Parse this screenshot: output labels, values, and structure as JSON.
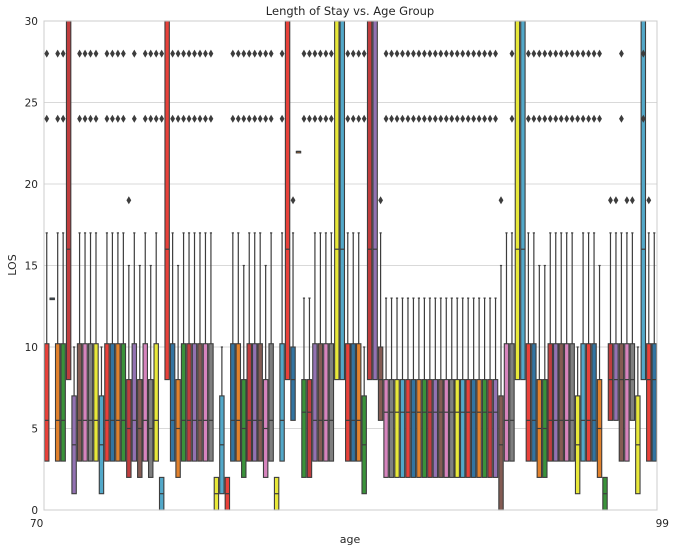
{
  "chart_data": {
    "type": "box",
    "title": "Length of Stay vs. Age Group",
    "xlabel": "age",
    "ylabel": "LOS",
    "ylim": [
      0,
      30
    ],
    "yticks": [
      0,
      5,
      10,
      15,
      20,
      25,
      30
    ],
    "grid": "y",
    "legend": "none",
    "first_x_tick_label": "70",
    "last_x_tick_label": "99",
    "palette": [
      "#e8413a",
      "#3274a1",
      "#e1812c",
      "#3a923a",
      "#c03d3e",
      "#9372b2",
      "#845b53",
      "#d684bd",
      "#7f7f7f",
      "#e8e83a",
      "#52a8c9"
    ],
    "boxes": [
      {
        "q1": 3,
        "median": 5.5,
        "q3": 10.2,
        "whisker_high": 17,
        "fliers": [
          24,
          28
        ]
      },
      {
        "q1": 13,
        "median": 13,
        "q3": 13,
        "whisker_high": 13,
        "fliers": []
      },
      {
        "q1": 3,
        "median": 5.5,
        "q3": 10.2,
        "whisker_high": 17,
        "fliers": [
          24,
          28
        ]
      },
      {
        "q1": 3,
        "median": 5.5,
        "q3": 10.2,
        "whisker_high": 17,
        "fliers": [
          24,
          28
        ]
      },
      {
        "q1": 8,
        "median": 16,
        "q3": 30,
        "whisker_high": 30,
        "fliers": []
      },
      {
        "q1": 1,
        "median": 4,
        "q3": 7,
        "whisker_high": 10,
        "fliers": []
      },
      {
        "q1": 3,
        "median": 5.5,
        "q3": 10.2,
        "whisker_high": 17,
        "fliers": [
          24,
          28
        ]
      },
      {
        "q1": 3,
        "median": 5.5,
        "q3": 10.2,
        "whisker_high": 17,
        "fliers": [
          24,
          28
        ]
      },
      {
        "q1": 3,
        "median": 5.5,
        "q3": 10.2,
        "whisker_high": 17,
        "fliers": [
          24,
          28
        ]
      },
      {
        "q1": 3,
        "median": 5.5,
        "q3": 10.2,
        "whisker_high": 17,
        "fliers": [
          24,
          28
        ]
      },
      {
        "q1": 1,
        "median": 4,
        "q3": 7,
        "whisker_high": 10,
        "fliers": []
      },
      {
        "q1": 3,
        "median": 5.5,
        "q3": 10.2,
        "whisker_high": 17,
        "fliers": [
          24,
          28
        ]
      },
      {
        "q1": 3,
        "median": 5.5,
        "q3": 10.2,
        "whisker_high": 17,
        "fliers": [
          24,
          28
        ]
      },
      {
        "q1": 3,
        "median": 5.5,
        "q3": 10.2,
        "whisker_high": 17,
        "fliers": [
          24,
          28
        ]
      },
      {
        "q1": 3,
        "median": 5.5,
        "q3": 10.2,
        "whisker_high": 17,
        "fliers": [
          24,
          28
        ]
      },
      {
        "q1": 2,
        "median": 5,
        "q3": 8,
        "whisker_high": 15,
        "fliers": [
          19
        ]
      },
      {
        "q1": 3,
        "median": 5.5,
        "q3": 10.2,
        "whisker_high": 17,
        "fliers": [
          24,
          28
        ]
      },
      {
        "q1": 2,
        "median": 5,
        "q3": 8,
        "whisker_high": 15,
        "fliers": []
      },
      {
        "q1": 3,
        "median": 5.5,
        "q3": 10.2,
        "whisker_high": 17,
        "fliers": [
          24,
          28
        ]
      },
      {
        "q1": 2,
        "median": 5,
        "q3": 8,
        "whisker_high": 15,
        "fliers": [
          24,
          28
        ]
      },
      {
        "q1": 3,
        "median": 5.5,
        "q3": 10.2,
        "whisker_high": 17,
        "fliers": [
          24,
          28
        ]
      },
      {
        "q1": 0,
        "median": 1,
        "q3": 2,
        "whisker_high": 2,
        "fliers": [
          24,
          28
        ]
      },
      {
        "q1": 8,
        "median": 16,
        "q3": 30,
        "whisker_high": 30,
        "fliers": []
      },
      {
        "q1": 3,
        "median": 5.5,
        "q3": 10.2,
        "whisker_high": 17,
        "fliers": [
          24,
          28
        ]
      },
      {
        "q1": 2,
        "median": 5,
        "q3": 8,
        "whisker_high": 15,
        "fliers": [
          24,
          28
        ]
      },
      {
        "q1": 3,
        "median": 5.5,
        "q3": 10.2,
        "whisker_high": 17,
        "fliers": [
          24,
          28
        ]
      },
      {
        "q1": 3,
        "median": 5.5,
        "q3": 10.2,
        "whisker_high": 17,
        "fliers": [
          24,
          28
        ]
      },
      {
        "q1": 3,
        "median": 5.5,
        "q3": 10.2,
        "whisker_high": 17,
        "fliers": [
          24,
          28
        ]
      },
      {
        "q1": 3,
        "median": 5.5,
        "q3": 10.2,
        "whisker_high": 17,
        "fliers": [
          24,
          28
        ]
      },
      {
        "q1": 3,
        "median": 5.5,
        "q3": 10.2,
        "whisker_high": 17,
        "fliers": [
          24,
          28
        ]
      },
      {
        "q1": 3,
        "median": 5.5,
        "q3": 10.2,
        "whisker_high": 17,
        "fliers": [
          24,
          28
        ]
      },
      {
        "q1": 0,
        "median": 1,
        "q3": 2,
        "whisker_high": 2,
        "fliers": []
      },
      {
        "q1": 1,
        "median": 4,
        "q3": 7,
        "whisker_high": 10,
        "fliers": []
      },
      {
        "q1": 0,
        "median": 1,
        "q3": 2,
        "whisker_high": 2,
        "fliers": []
      },
      {
        "q1": 3,
        "median": 5.5,
        "q3": 10.2,
        "whisker_high": 17,
        "fliers": [
          24,
          28
        ]
      },
      {
        "q1": 3,
        "median": 5.5,
        "q3": 10.2,
        "whisker_high": 17,
        "fliers": [
          24,
          28
        ]
      },
      {
        "q1": 2,
        "median": 5,
        "q3": 8,
        "whisker_high": 15,
        "fliers": [
          24,
          28
        ]
      },
      {
        "q1": 3,
        "median": 5.5,
        "q3": 10.2,
        "whisker_high": 17,
        "fliers": [
          24,
          28
        ]
      },
      {
        "q1": 3,
        "median": 5.5,
        "q3": 10.2,
        "whisker_high": 17,
        "fliers": [
          24,
          28
        ]
      },
      {
        "q1": 3,
        "median": 5.5,
        "q3": 10.2,
        "whisker_high": 17,
        "fliers": [
          24,
          28
        ]
      },
      {
        "q1": 2,
        "median": 5,
        "q3": 8,
        "whisker_high": 15,
        "fliers": [
          24,
          28
        ]
      },
      {
        "q1": 3,
        "median": 5.5,
        "q3": 10.2,
        "whisker_high": 17,
        "fliers": [
          24,
          28
        ]
      },
      {
        "q1": 0,
        "median": 1,
        "q3": 2,
        "whisker_high": 2,
        "fliers": []
      },
      {
        "q1": 3,
        "median": 5.5,
        "q3": 10.2,
        "whisker_high": 17,
        "fliers": [
          24,
          28
        ]
      },
      {
        "q1": 8,
        "median": 16,
        "q3": 30,
        "whisker_high": 30,
        "fliers": []
      },
      {
        "q1": 5.5,
        "median": 8,
        "q3": 10,
        "whisker_high": 17,
        "fliers": [
          19
        ]
      },
      {
        "q1": 22,
        "median": 22,
        "q3": 22,
        "whisker_high": 22,
        "fliers": []
      },
      {
        "q1": 2,
        "median": 6,
        "q3": 8,
        "whisker_high": 13,
        "fliers": [
          24,
          28
        ]
      },
      {
        "q1": 2,
        "median": 6,
        "q3": 8,
        "whisker_high": 13,
        "fliers": [
          24,
          28
        ]
      },
      {
        "q1": 3,
        "median": 5.5,
        "q3": 10.2,
        "whisker_high": 17,
        "fliers": [
          24,
          28
        ]
      },
      {
        "q1": 3,
        "median": 5.5,
        "q3": 10.2,
        "whisker_high": 17,
        "fliers": [
          24,
          28
        ]
      },
      {
        "q1": 3,
        "median": 5.5,
        "q3": 10.2,
        "whisker_high": 17,
        "fliers": [
          24,
          28
        ]
      },
      {
        "q1": 3,
        "median": 5.5,
        "q3": 10.2,
        "whisker_high": 17,
        "fliers": [
          24,
          28
        ]
      },
      {
        "q1": 8,
        "median": 16,
        "q3": 30,
        "whisker_high": 30,
        "fliers": []
      },
      {
        "q1": 8,
        "median": 16,
        "q3": 30,
        "whisker_high": 30,
        "fliers": []
      },
      {
        "q1": 3,
        "median": 5.5,
        "q3": 10.2,
        "whisker_high": 17,
        "fliers": [
          24,
          28
        ]
      },
      {
        "q1": 3,
        "median": 5.5,
        "q3": 10.2,
        "whisker_high": 17,
        "fliers": [
          24,
          28
        ]
      },
      {
        "q1": 3,
        "median": 5.5,
        "q3": 10.2,
        "whisker_high": 17,
        "fliers": [
          24,
          28
        ]
      },
      {
        "q1": 1,
        "median": 4,
        "q3": 7,
        "whisker_high": 10,
        "fliers": [
          24,
          28
        ]
      },
      {
        "q1": 8,
        "median": 16,
        "q3": 30,
        "whisker_high": 30,
        "fliers": []
      },
      {
        "q1": 8,
        "median": 16,
        "q3": 30,
        "whisker_high": 30,
        "fliers": []
      },
      {
        "q1": 5.5,
        "median": 8,
        "q3": 10,
        "whisker_high": 17,
        "fliers": [
          19
        ]
      },
      {
        "q1": 2,
        "median": 6,
        "q3": 8,
        "whisker_high": 13,
        "fliers": [
          24,
          28
        ]
      },
      {
        "q1": 2,
        "median": 6,
        "q3": 8,
        "whisker_high": 13,
        "fliers": [
          24,
          28
        ]
      },
      {
        "q1": 2,
        "median": 6,
        "q3": 8,
        "whisker_high": 13,
        "fliers": [
          24,
          28
        ]
      },
      {
        "q1": 2,
        "median": 6,
        "q3": 8,
        "whisker_high": 13,
        "fliers": [
          24,
          28
        ]
      },
      {
        "q1": 2,
        "median": 6,
        "q3": 8,
        "whisker_high": 13,
        "fliers": [
          24,
          28
        ]
      },
      {
        "q1": 2,
        "median": 6,
        "q3": 8,
        "whisker_high": 13,
        "fliers": [
          24,
          28
        ]
      },
      {
        "q1": 2,
        "median": 6,
        "q3": 8,
        "whisker_high": 13,
        "fliers": [
          24,
          28
        ]
      },
      {
        "q1": 2,
        "median": 6,
        "q3": 8,
        "whisker_high": 13,
        "fliers": [
          24,
          28
        ]
      },
      {
        "q1": 2,
        "median": 6,
        "q3": 8,
        "whisker_high": 13,
        "fliers": [
          24,
          28
        ]
      },
      {
        "q1": 2,
        "median": 6,
        "q3": 8,
        "whisker_high": 13,
        "fliers": [
          24,
          28
        ]
      },
      {
        "q1": 2,
        "median": 6,
        "q3": 8,
        "whisker_high": 13,
        "fliers": [
          24,
          28
        ]
      },
      {
        "q1": 2,
        "median": 6,
        "q3": 8,
        "whisker_high": 13,
        "fliers": [
          24,
          28
        ]
      },
      {
        "q1": 2,
        "median": 6,
        "q3": 8,
        "whisker_high": 13,
        "fliers": [
          24,
          28
        ]
      },
      {
        "q1": 2,
        "median": 6,
        "q3": 8,
        "whisker_high": 13,
        "fliers": [
          24,
          28
        ]
      },
      {
        "q1": 2,
        "median": 6,
        "q3": 8,
        "whisker_high": 13,
        "fliers": [
          24,
          28
        ]
      },
      {
        "q1": 2,
        "median": 6,
        "q3": 8,
        "whisker_high": 13,
        "fliers": [
          24,
          28
        ]
      },
      {
        "q1": 2,
        "median": 6,
        "q3": 8,
        "whisker_high": 13,
        "fliers": [
          24,
          28
        ]
      },
      {
        "q1": 2,
        "median": 6,
        "q3": 8,
        "whisker_high": 13,
        "fliers": [
          24,
          28
        ]
      },
      {
        "q1": 2,
        "median": 6,
        "q3": 8,
        "whisker_high": 13,
        "fliers": [
          24,
          28
        ]
      },
      {
        "q1": 2,
        "median": 6,
        "q3": 8,
        "whisker_high": 13,
        "fliers": [
          24,
          28
        ]
      },
      {
        "q1": 2,
        "median": 6,
        "q3": 8,
        "whisker_high": 13,
        "fliers": [
          24,
          28
        ]
      },
      {
        "q1": 0,
        "median": 4,
        "q3": 7,
        "whisker_high": 15,
        "fliers": [
          19
        ]
      },
      {
        "q1": 3,
        "median": 5.5,
        "q3": 10.2,
        "whisker_high": 17,
        "fliers": []
      },
      {
        "q1": 3,
        "median": 5.5,
        "q3": 10.2,
        "whisker_high": 17,
        "fliers": [
          24,
          28
        ]
      },
      {
        "q1": 8,
        "median": 16,
        "q3": 30,
        "whisker_high": 30,
        "fliers": []
      },
      {
        "q1": 8,
        "median": 16,
        "q3": 30,
        "whisker_high": 30,
        "fliers": []
      },
      {
        "q1": 3,
        "median": 5.5,
        "q3": 10.2,
        "whisker_high": 17,
        "fliers": [
          24,
          28
        ]
      },
      {
        "q1": 3,
        "median": 5.5,
        "q3": 10.2,
        "whisker_high": 17,
        "fliers": [
          24,
          28
        ]
      },
      {
        "q1": 2,
        "median": 5,
        "q3": 8,
        "whisker_high": 15,
        "fliers": [
          24,
          28
        ]
      },
      {
        "q1": 2,
        "median": 5,
        "q3": 8,
        "whisker_high": 15,
        "fliers": [
          24,
          28
        ]
      },
      {
        "q1": 3,
        "median": 5.5,
        "q3": 10.2,
        "whisker_high": 17,
        "fliers": [
          24,
          28
        ]
      },
      {
        "q1": 3,
        "median": 5.5,
        "q3": 10.2,
        "whisker_high": 17,
        "fliers": [
          24,
          28
        ]
      },
      {
        "q1": 3,
        "median": 5.5,
        "q3": 10.2,
        "whisker_high": 17,
        "fliers": [
          24,
          28
        ]
      },
      {
        "q1": 3,
        "median": 5.5,
        "q3": 10.2,
        "whisker_high": 17,
        "fliers": [
          24,
          28
        ]
      },
      {
        "q1": 3,
        "median": 5.5,
        "q3": 10.2,
        "whisker_high": 17,
        "fliers": [
          24,
          28
        ]
      },
      {
        "q1": 1,
        "median": 4,
        "q3": 7,
        "whisker_high": 10,
        "fliers": [
          24,
          28
        ]
      },
      {
        "q1": 3,
        "median": 5.5,
        "q3": 10.2,
        "whisker_high": 17,
        "fliers": [
          24,
          28
        ]
      },
      {
        "q1": 3,
        "median": 5.5,
        "q3": 10.2,
        "whisker_high": 17,
        "fliers": [
          24,
          28
        ]
      },
      {
        "q1": 3,
        "median": 5.5,
        "q3": 10.2,
        "whisker_high": 17,
        "fliers": [
          24,
          28
        ]
      },
      {
        "q1": 2,
        "median": 5,
        "q3": 8,
        "whisker_high": 15,
        "fliers": [
          24,
          28
        ]
      },
      {
        "q1": 0,
        "median": 1,
        "q3": 2,
        "whisker_high": 2,
        "fliers": []
      },
      {
        "q1": 5.5,
        "median": 8,
        "q3": 10.2,
        "whisker_high": 17,
        "fliers": [
          19
        ]
      },
      {
        "q1": 5.5,
        "median": 8,
        "q3": 10.2,
        "whisker_high": 17,
        "fliers": [
          19
        ]
      },
      {
        "q1": 3,
        "median": 8,
        "q3": 10.2,
        "whisker_high": 17,
        "fliers": [
          24,
          28
        ]
      },
      {
        "q1": 3,
        "median": 8,
        "q3": 10.2,
        "whisker_high": 17,
        "fliers": [
          19
        ]
      },
      {
        "q1": 5.5,
        "median": 8,
        "q3": 10.2,
        "whisker_high": 17,
        "fliers": [
          19
        ]
      },
      {
        "q1": 1,
        "median": 4,
        "q3": 7,
        "whisker_high": 10,
        "fliers": []
      },
      {
        "q1": 8,
        "median": 16,
        "q3": 30,
        "whisker_high": 30,
        "fliers": [
          24,
          28
        ]
      },
      {
        "q1": 3,
        "median": 8,
        "q3": 10.2,
        "whisker_high": 17,
        "fliers": [
          19
        ]
      },
      {
        "q1": 3,
        "median": 8,
        "q3": 10.2,
        "whisker_high": 17,
        "fliers": []
      }
    ]
  }
}
